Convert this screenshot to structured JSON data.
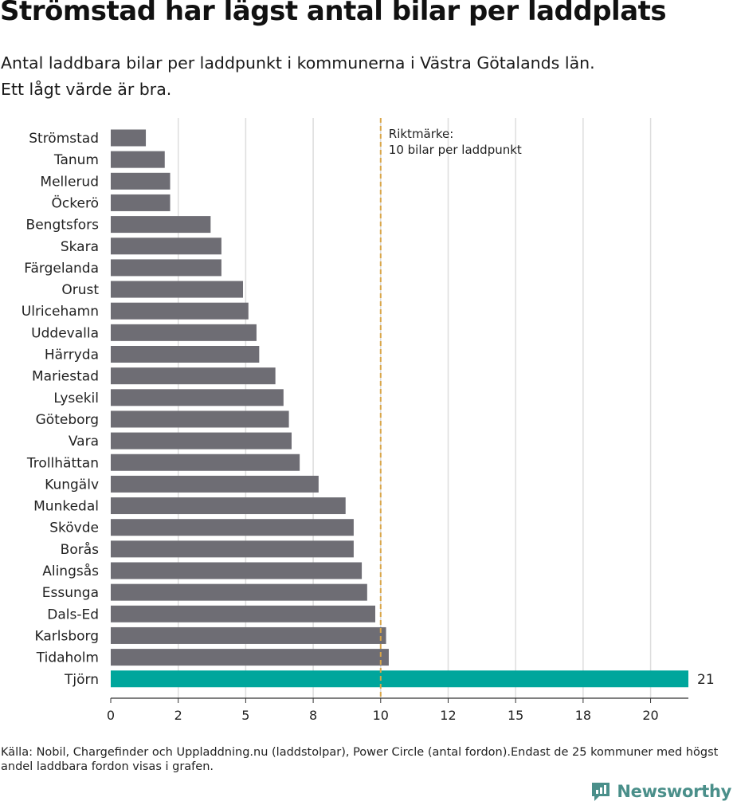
{
  "header": {
    "title": "Strömstad har lägst antal bilar per laddplats",
    "subtitle_line1": "Antal laddbara bilar per laddpunkt i kommunerna i Västra Götalands län.",
    "subtitle_line2": "Ett lågt värde är bra."
  },
  "footer": {
    "source": "Källa: Nobil, Chargefinder och Uppladdning.nu (laddstolpar), Power Circle (antal fordon).Endast de 25 kommuner med högst andel laddbara fordon visas i grafen.",
    "brand": "Newsworthy"
  },
  "colors": {
    "bar": "#6e6d74",
    "highlight": "#00a69c",
    "reference": "#d9a648",
    "grid": "#dddddd",
    "brand": "#4a8f8a"
  },
  "chart_data": {
    "type": "bar",
    "orientation": "horizontal",
    "categories": [
      "Strömstad",
      "Tanum",
      "Mellerud",
      "Öckerö",
      "Bengtsfors",
      "Skara",
      "Färgelanda",
      "Orust",
      "Ulricehamn",
      "Uddevalla",
      "Härryda",
      "Mariestad",
      "Lysekil",
      "Göteborg",
      "Vara",
      "Trollhättan",
      "Kungälv",
      "Munkedal",
      "Skövde",
      "Borås",
      "Alingsås",
      "Essunga",
      "Dals-Ed",
      "Karlsborg",
      "Tidaholm",
      "Tjörn"
    ],
    "values": [
      1.3,
      2.0,
      2.2,
      2.2,
      3.7,
      4.1,
      4.1,
      4.9,
      5.1,
      5.4,
      5.5,
      6.1,
      6.4,
      6.6,
      6.7,
      7.0,
      7.7,
      8.7,
      9.0,
      9.0,
      9.3,
      9.5,
      9.8,
      10.2,
      10.3,
      21.4
    ],
    "highlight": "Tjörn",
    "value_labels": [
      {
        "category": "Tjörn",
        "text": "21"
      }
    ],
    "x_axis": {
      "ticks": [
        0,
        2.5,
        5,
        7.5,
        10,
        12.5,
        15,
        17.5,
        20
      ],
      "tick_labels": [
        "0",
        "2",
        "5",
        "8",
        "10",
        "12",
        "15",
        "18",
        "20"
      ],
      "xlim": [
        0,
        21.4
      ]
    },
    "reference_line": {
      "value": 10,
      "label_line1": "Riktmärke:",
      "label_line2": "10 bilar per laddpunkt"
    },
    "grid": true,
    "xlabel": "",
    "ylabel": ""
  }
}
